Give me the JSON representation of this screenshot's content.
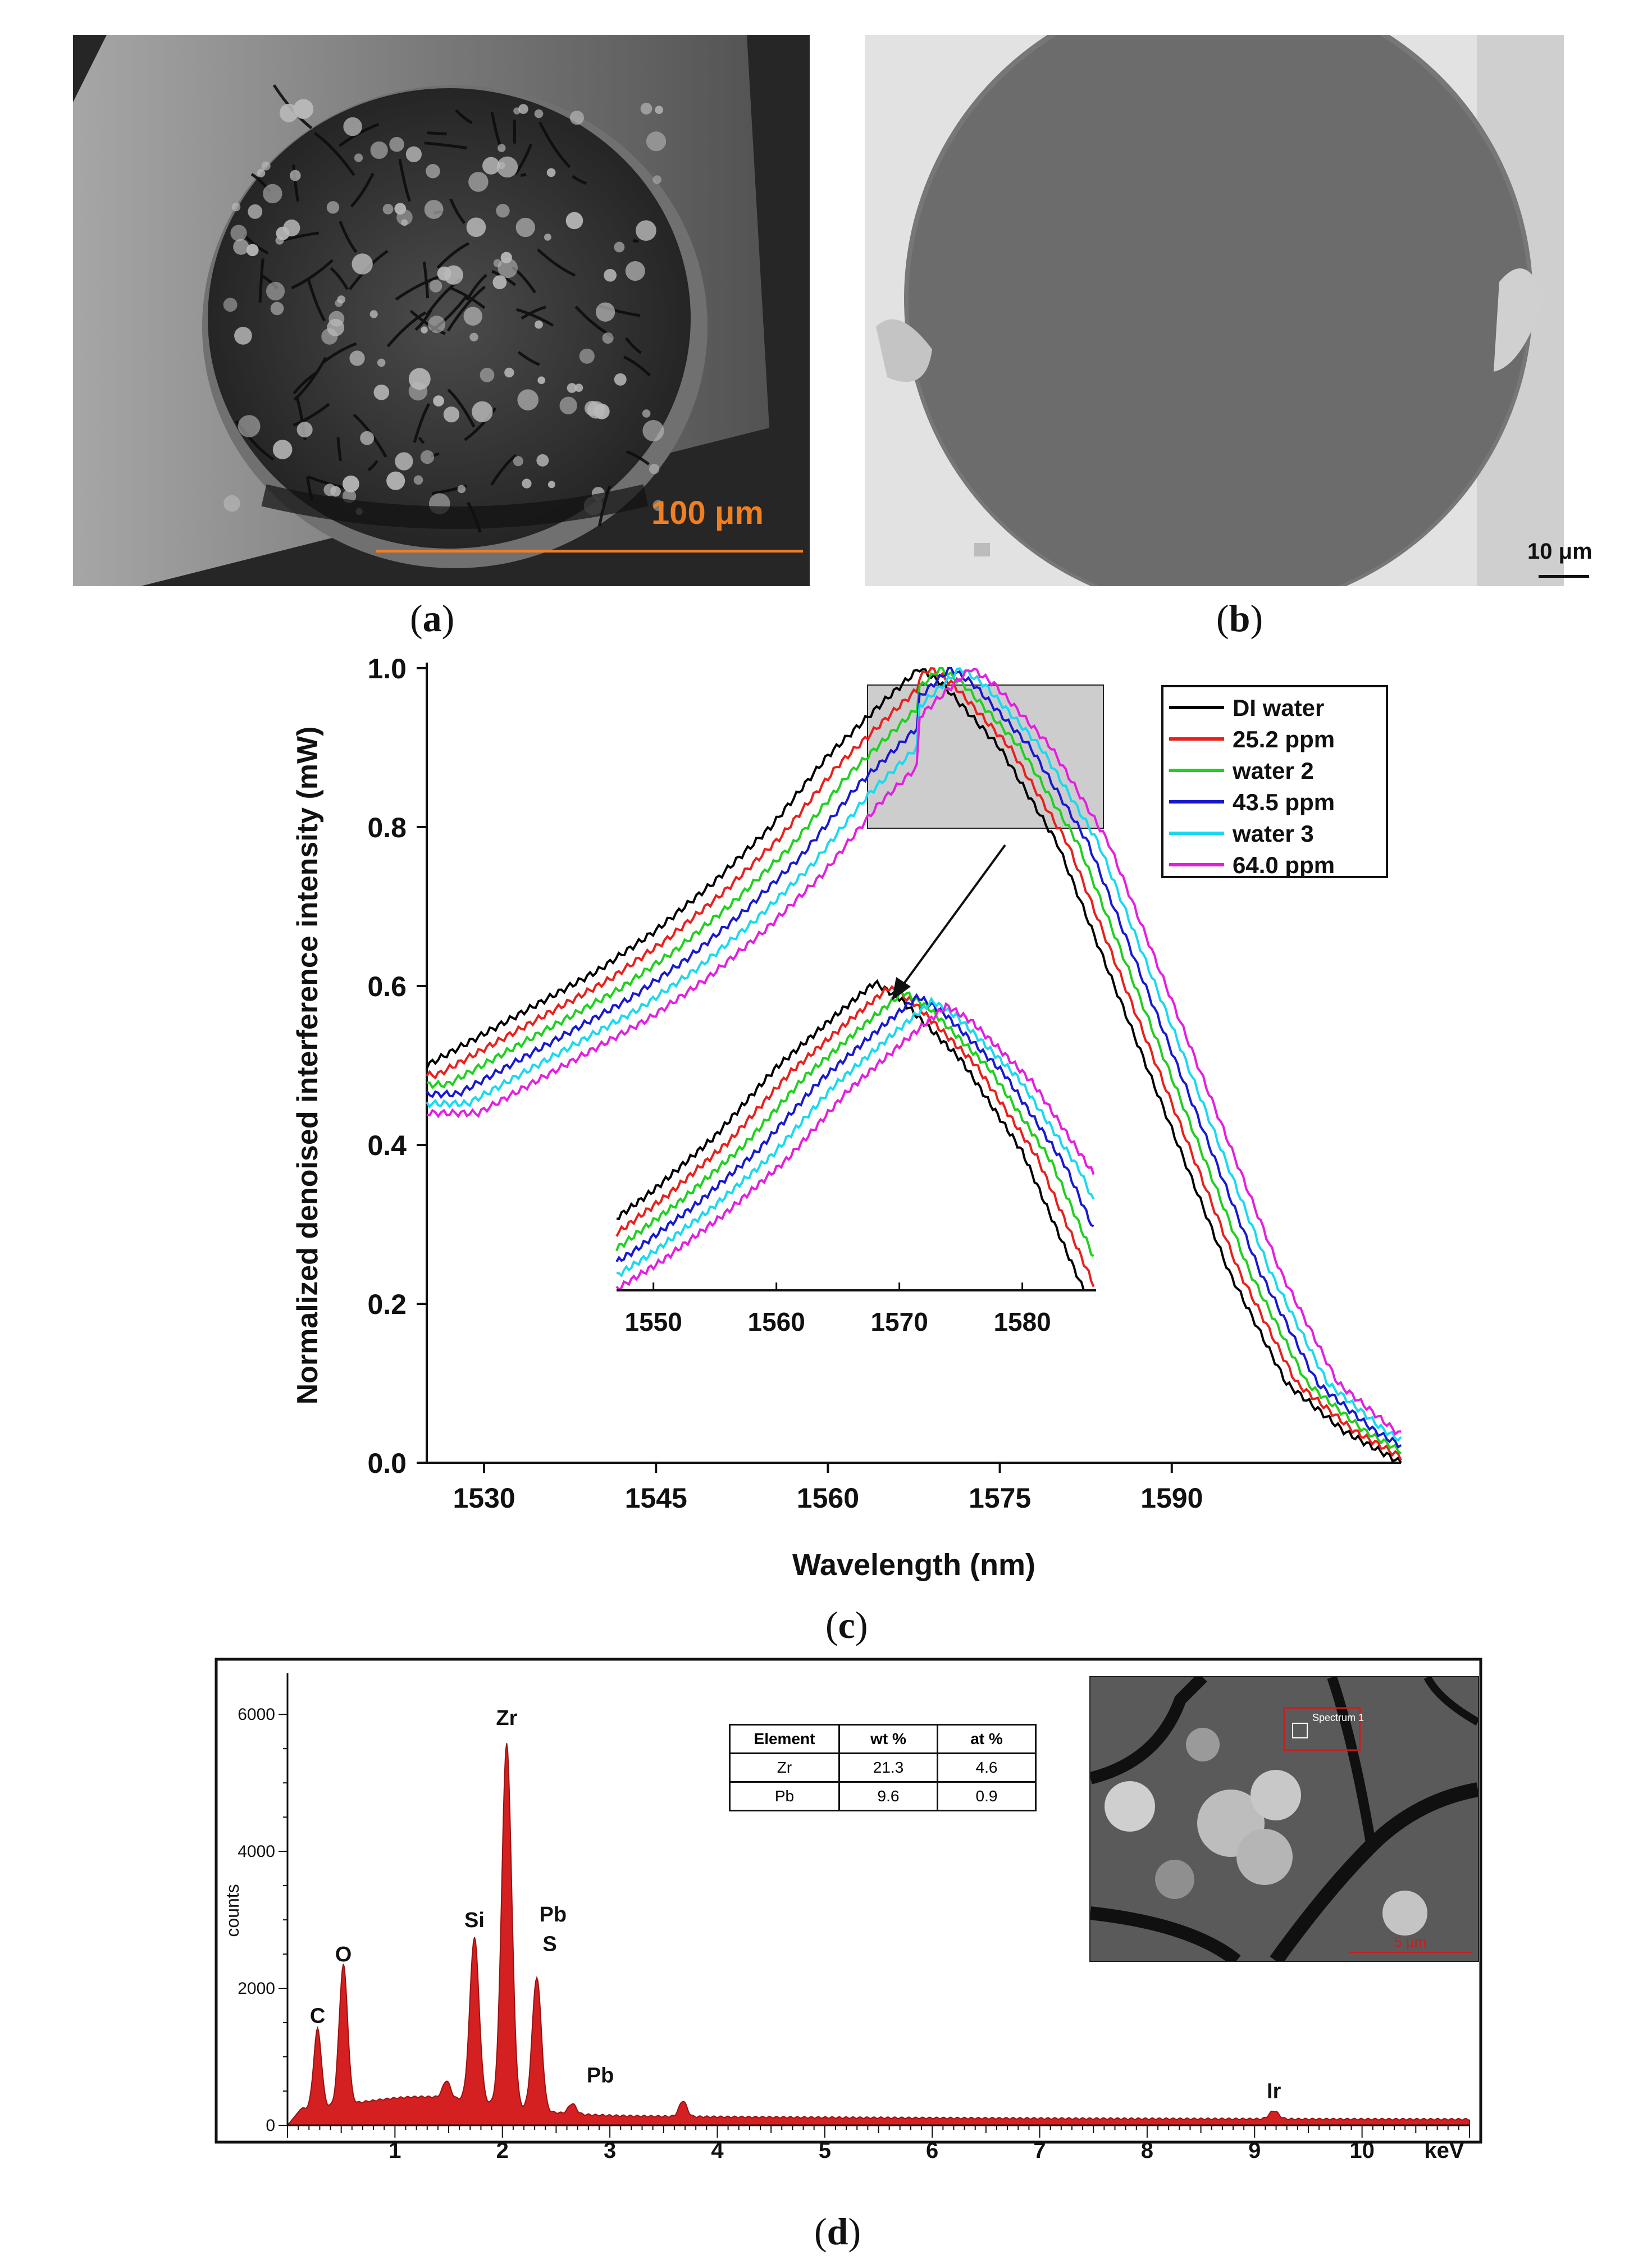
{
  "panels": {
    "a": {
      "label_open": "(",
      "letter": "a",
      "label_close": ")",
      "scale_text": "100 μm",
      "scale_color": "#f07f22"
    },
    "b": {
      "label_open": "(",
      "letter": "b",
      "label_close": ")",
      "scale_text": "10 μm"
    },
    "c": {
      "label_open": "(",
      "letter": "c",
      "label_close": ")"
    },
    "d": {
      "label_open": "(",
      "letter": "d",
      "label_close": ")"
    }
  },
  "chart_data": [
    {
      "type": "line",
      "id": "panel-c",
      "xlabel": "Wavelength (nm)",
      "ylabel": "Normalized denoised interference intensity (mW)",
      "xlim": [
        1525,
        1610
      ],
      "ylim": [
        0,
        1.0
      ],
      "xticks": [
        "1530",
        "1545",
        "1560",
        "1575",
        "1590"
      ],
      "yticks": [
        "0.0",
        "0.2",
        "0.4",
        "0.6",
        "0.8",
        "1.0"
      ],
      "legend_position": "top-right",
      "series": [
        {
          "name": "DI water",
          "color": "#000000",
          "shift": 0.0,
          "x": [
            1525,
            1530,
            1535,
            1540,
            1545,
            1550,
            1555,
            1560,
            1565,
            1568,
            1570,
            1575,
            1580,
            1585,
            1590,
            1595,
            1600,
            1605,
            1610
          ],
          "y": [
            0.5,
            0.54,
            0.58,
            0.62,
            0.67,
            0.73,
            0.8,
            0.89,
            0.96,
            1.0,
            0.98,
            0.9,
            0.78,
            0.6,
            0.42,
            0.24,
            0.1,
            0.04,
            0.0
          ]
        },
        {
          "name": "25.2 ppm",
          "color": "#e8201c",
          "shift": 0.9,
          "x": [],
          "y": []
        },
        {
          "name": "water 2",
          "color": "#1fd01f",
          "shift": 1.8,
          "x": [],
          "y": []
        },
        {
          "name": "43.5 ppm",
          "color": "#1818d0",
          "shift": 2.7,
          "x": [],
          "y": []
        },
        {
          "name": "water 3",
          "color": "#19d9ef",
          "shift": 3.6,
          "x": [],
          "y": []
        },
        {
          "name": "64.0 ppm",
          "color": "#e41ee0",
          "shift": 4.5,
          "x": [],
          "y": []
        }
      ],
      "inset": {
        "xticks": [
          "1550",
          "1560",
          "1570",
          "1580"
        ],
        "xlim": [
          1547,
          1586
        ]
      }
    },
    {
      "type": "area",
      "id": "panel-d",
      "ylabel": "counts",
      "xunit": "keV",
      "xlim": [
        0,
        11
      ],
      "ylim": [
        0,
        6600
      ],
      "xticks": [
        "1",
        "2",
        "3",
        "4",
        "5",
        "6",
        "7",
        "8",
        "9",
        "10"
      ],
      "yticks": [
        "0",
        "2000",
        "4000",
        "6000"
      ],
      "fill_color": "#d42020",
      "peaks": [
        {
          "label": "C",
          "x": 0.28,
          "y": 1250
        },
        {
          "label": "O",
          "x": 0.52,
          "y": 2150
        },
        {
          "label": "Si",
          "x": 1.74,
          "y": 2650
        },
        {
          "label": "Zr",
          "x": 2.04,
          "y": 5600
        },
        {
          "label": "Pb",
          "x": 2.34,
          "y": 2320
        },
        {
          "label": "S",
          "x": 2.31,
          "y": 2300
        },
        {
          "label": "Pb",
          "x": 2.65,
          "y": 300
        },
        {
          "label": "Ir",
          "x": 9.18,
          "y": 150
        }
      ],
      "table": {
        "headers": [
          "Element",
          "wt %",
          "at %"
        ],
        "rows": [
          [
            "Zr",
            "21.3",
            "4.6"
          ],
          [
            "Pb",
            "9.6",
            "0.9"
          ]
        ]
      },
      "inset_spectrum_label": "Spectrum 1",
      "inset_scale": "5 μm"
    }
  ]
}
